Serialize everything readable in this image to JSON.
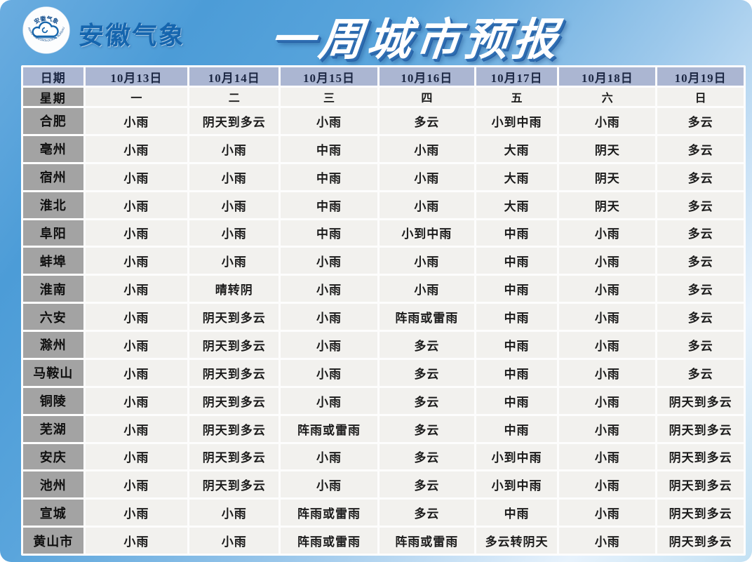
{
  "brand": {
    "name": "安徽气象",
    "logo_ring_top": "安徽气象",
    "logo_ring_bottom": "ANHUI METEOROLOGICAL BUREAU"
  },
  "title": "一周城市预报",
  "chart_data": {
    "type": "table",
    "title": "一周城市预报",
    "corner_label": "日期",
    "week_row_label": "星期",
    "date_headers": [
      "10月13日",
      "10月14日",
      "10月15日",
      "10月16日",
      "10月17日",
      "10月18日",
      "10月19日"
    ],
    "weekday_headers": [
      "一",
      "二",
      "三",
      "四",
      "五",
      "六",
      "日"
    ],
    "rows": [
      {
        "city": "合肥",
        "forecasts": [
          "小雨",
          "阴天到多云",
          "小雨",
          "多云",
          "小到中雨",
          "小雨",
          "多云"
        ]
      },
      {
        "city": "亳州",
        "forecasts": [
          "小雨",
          "小雨",
          "中雨",
          "小雨",
          "大雨",
          "阴天",
          "多云"
        ]
      },
      {
        "city": "宿州",
        "forecasts": [
          "小雨",
          "小雨",
          "中雨",
          "小雨",
          "大雨",
          "阴天",
          "多云"
        ]
      },
      {
        "city": "淮北",
        "forecasts": [
          "小雨",
          "小雨",
          "中雨",
          "小雨",
          "大雨",
          "阴天",
          "多云"
        ]
      },
      {
        "city": "阜阳",
        "forecasts": [
          "小雨",
          "小雨",
          "中雨",
          "小到中雨",
          "中雨",
          "小雨",
          "多云"
        ]
      },
      {
        "city": "蚌埠",
        "forecasts": [
          "小雨",
          "小雨",
          "小雨",
          "小雨",
          "中雨",
          "小雨",
          "多云"
        ]
      },
      {
        "city": "淮南",
        "forecasts": [
          "小雨",
          "晴转阴",
          "小雨",
          "小雨",
          "中雨",
          "小雨",
          "多云"
        ]
      },
      {
        "city": "六安",
        "forecasts": [
          "小雨",
          "阴天到多云",
          "小雨",
          "阵雨或雷雨",
          "中雨",
          "小雨",
          "多云"
        ]
      },
      {
        "city": "滁州",
        "forecasts": [
          "小雨",
          "阴天到多云",
          "小雨",
          "多云",
          "中雨",
          "小雨",
          "多云"
        ]
      },
      {
        "city": "马鞍山",
        "forecasts": [
          "小雨",
          "阴天到多云",
          "小雨",
          "多云",
          "中雨",
          "小雨",
          "多云"
        ]
      },
      {
        "city": "铜陵",
        "forecasts": [
          "小雨",
          "阴天到多云",
          "小雨",
          "多云",
          "中雨",
          "小雨",
          "阴天到多云"
        ]
      },
      {
        "city": "芜湖",
        "forecasts": [
          "小雨",
          "阴天到多云",
          "阵雨或雷雨",
          "多云",
          "中雨",
          "小雨",
          "阴天到多云"
        ]
      },
      {
        "city": "安庆",
        "forecasts": [
          "小雨",
          "阴天到多云",
          "小雨",
          "多云",
          "小到中雨",
          "小雨",
          "阴天到多云"
        ]
      },
      {
        "city": "池州",
        "forecasts": [
          "小雨",
          "阴天到多云",
          "小雨",
          "多云",
          "小到中雨",
          "小雨",
          "阴天到多云"
        ]
      },
      {
        "city": "宣城",
        "forecasts": [
          "小雨",
          "小雨",
          "阵雨或雷雨",
          "多云",
          "中雨",
          "小雨",
          "阴天到多云"
        ]
      },
      {
        "city": "黄山市",
        "forecasts": [
          "小雨",
          "小雨",
          "阵雨或雷雨",
          "阵雨或雷雨",
          "多云转阴天",
          "小雨",
          "阴天到多云"
        ]
      }
    ]
  },
  "colors": {
    "background_blue": "#4c9cd7",
    "background_light": "#c3e1f3",
    "date_header_bg": "#abb6d2",
    "city_column_bg": "#a3a3a3",
    "data_cell_bg": "#f2f1ee",
    "title_text": "#ffffff",
    "title_shadow": "#2f6eb3",
    "brand_text": "#1565ae"
  }
}
